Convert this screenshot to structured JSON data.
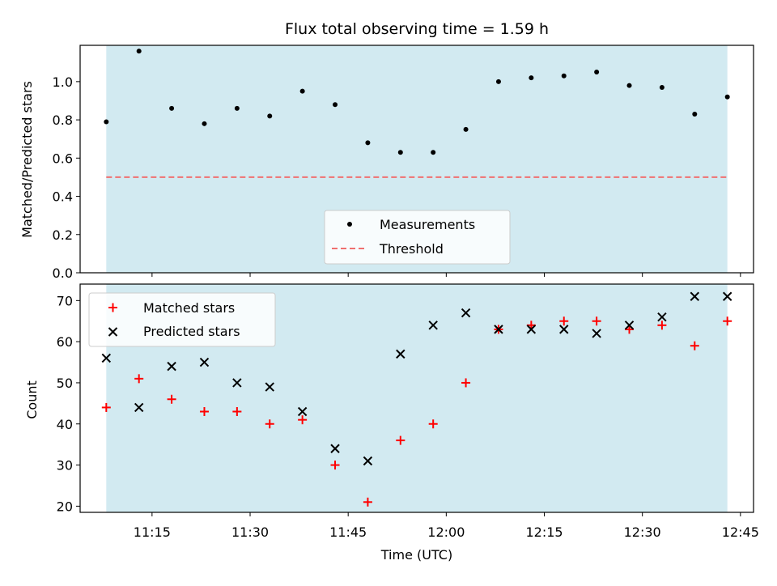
{
  "chart_data": [
    {
      "type": "scatter",
      "title": "Flux total observing time = 1.59 h",
      "xlabel": "",
      "ylabel": "Matched/Predicted stars",
      "ylim": [
        0,
        1.19
      ],
      "yticks": [
        0.0,
        0.2,
        0.4,
        0.6,
        0.8,
        1.0
      ],
      "ytick_labels": [
        "0.0",
        "0.2",
        "0.4",
        "0.6",
        "0.8",
        "1.0"
      ],
      "x": [
        "11:08",
        "11:13",
        "11:18",
        "11:23",
        "11:28",
        "11:33",
        "11:38",
        "11:43",
        "11:48",
        "11:53",
        "11:58",
        "12:03",
        "12:08",
        "12:13",
        "12:18",
        "12:23",
        "12:28",
        "12:33",
        "12:38",
        "12:43"
      ],
      "series": [
        {
          "name": "Measurements",
          "marker": "dot",
          "color": "#000000",
          "values": [
            0.79,
            1.16,
            0.86,
            0.78,
            0.86,
            0.82,
            0.95,
            0.88,
            0.68,
            0.63,
            0.63,
            0.75,
            1.0,
            1.02,
            1.03,
            1.05,
            0.98,
            0.97,
            0.83,
            0.92
          ]
        },
        {
          "name": "Threshold",
          "style": "dashed",
          "color": "#f07070",
          "values": [
            0.5,
            0.5
          ]
        }
      ],
      "threshold_x": [
        "11:08",
        "12:43"
      ],
      "shaded_span": [
        "11:08",
        "12:43"
      ],
      "shade_color": "#add8e6",
      "legend_position": "lower center",
      "grid": false
    },
    {
      "type": "scatter",
      "title": "",
      "xlabel": "Time (UTC)",
      "ylabel": "Count",
      "ylim": [
        18.5,
        74
      ],
      "yticks": [
        20,
        30,
        40,
        50,
        60,
        70
      ],
      "ytick_labels": [
        "20",
        "30",
        "40",
        "50",
        "60",
        "70"
      ],
      "xticks": [
        "11:15",
        "11:30",
        "11:45",
        "12:00",
        "12:15",
        "12:30",
        "12:45"
      ],
      "x": [
        "11:08",
        "11:13",
        "11:18",
        "11:23",
        "11:28",
        "11:33",
        "11:38",
        "11:43",
        "11:48",
        "11:53",
        "11:58",
        "12:03",
        "12:08",
        "12:13",
        "12:18",
        "12:23",
        "12:28",
        "12:33",
        "12:38",
        "12:43"
      ],
      "series": [
        {
          "name": "Matched stars",
          "marker": "plus",
          "color": "#ff0000",
          "values": [
            44,
            51,
            46,
            43,
            43,
            40,
            41,
            30,
            21,
            36,
            40,
            50,
            63,
            64,
            65,
            65,
            63,
            64,
            59,
            65
          ]
        },
        {
          "name": "Predicted stars",
          "marker": "x",
          "color": "#000000",
          "values": [
            56,
            44,
            54,
            55,
            50,
            49,
            43,
            34,
            31,
            57,
            64,
            67,
            63,
            63,
            63,
            62,
            64,
            66,
            71,
            71
          ]
        }
      ],
      "shaded_span": [
        "11:08",
        "12:43"
      ],
      "shade_color": "#add8e6",
      "legend_position": "upper left",
      "grid": false
    }
  ]
}
